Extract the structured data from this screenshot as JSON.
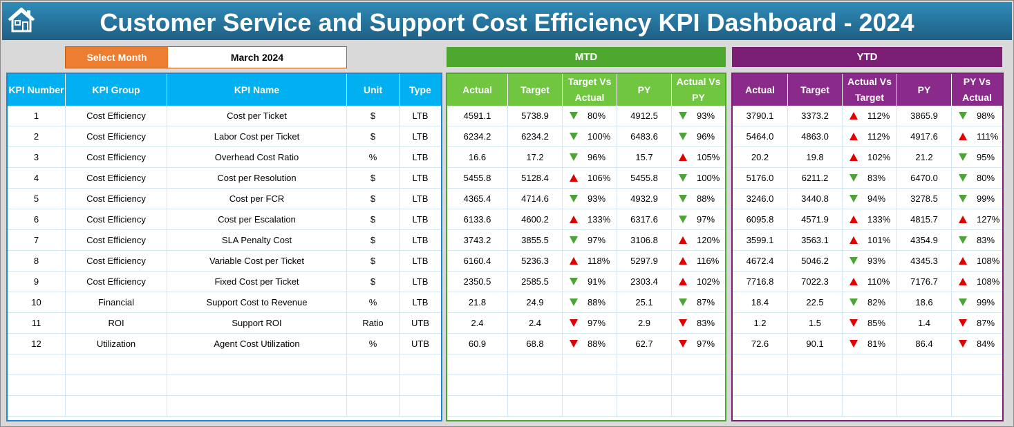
{
  "header": {
    "title": "Customer Service and Support Cost Efficiency KPI Dashboard - 2024"
  },
  "month_selector": {
    "label": "Select Month",
    "value": "March 2024"
  },
  "colors": {
    "kpi_header": "#00b0f0",
    "mtd": "#70c63f",
    "mtd_banner": "#4ea72e",
    "ytd": "#8a2a8a",
    "ytd_banner": "#7a1f74",
    "orange": "#ed7d31"
  },
  "mtd": {
    "banner": "MTD",
    "headers": [
      "Actual",
      "Target",
      "Target Vs Actual",
      "PY",
      "Actual Vs PY"
    ]
  },
  "ytd": {
    "banner": "YTD",
    "headers": [
      "Actual",
      "Target",
      "Actual Vs Target",
      "PY",
      "PY Vs Actual"
    ]
  },
  "kpi_headers": [
    "KPI Number",
    "KPI Group",
    "KPI Name",
    "Unit",
    "Type"
  ],
  "rows": [
    {
      "num": "1",
      "group": "Cost Efficiency",
      "name": "Cost per Ticket",
      "unit": "$",
      "type": "LTB",
      "mtd": {
        "actual": "4591.1",
        "target": "5738.9",
        "tva": "80%",
        "tva_icon": "down-green",
        "py": "4912.5",
        "avp": "93%",
        "avp_icon": "down-green"
      },
      "ytd": {
        "actual": "3790.1",
        "target": "3373.2",
        "avt": "112%",
        "avt_icon": "up-red",
        "py": "3865.9",
        "pva": "98%",
        "pva_icon": "down-green"
      }
    },
    {
      "num": "2",
      "group": "Cost Efficiency",
      "name": "Labor Cost per Ticket",
      "unit": "$",
      "type": "LTB",
      "mtd": {
        "actual": "6234.2",
        "target": "6234.2",
        "tva": "100%",
        "tva_icon": "down-green",
        "py": "6483.6",
        "avp": "96%",
        "avp_icon": "down-green"
      },
      "ytd": {
        "actual": "5464.0",
        "target": "4863.0",
        "avt": "112%",
        "avt_icon": "up-red",
        "py": "4917.6",
        "pva": "111%",
        "pva_icon": "up-red"
      }
    },
    {
      "num": "3",
      "group": "Cost Efficiency",
      "name": "Overhead Cost Ratio",
      "unit": "%",
      "type": "LTB",
      "mtd": {
        "actual": "16.6",
        "target": "17.2",
        "tva": "96%",
        "tva_icon": "down-green",
        "py": "15.7",
        "avp": "105%",
        "avp_icon": "up-red"
      },
      "ytd": {
        "actual": "20.2",
        "target": "19.8",
        "avt": "102%",
        "avt_icon": "up-red",
        "py": "21.2",
        "pva": "95%",
        "pva_icon": "down-green"
      }
    },
    {
      "num": "4",
      "group": "Cost Efficiency",
      "name": "Cost per Resolution",
      "unit": "$",
      "type": "LTB",
      "mtd": {
        "actual": "5455.8",
        "target": "5128.4",
        "tva": "106%",
        "tva_icon": "up-red",
        "py": "5455.8",
        "avp": "100%",
        "avp_icon": "down-green"
      },
      "ytd": {
        "actual": "5176.0",
        "target": "6211.2",
        "avt": "83%",
        "avt_icon": "down-green",
        "py": "6470.0",
        "pva": "80%",
        "pva_icon": "down-green"
      }
    },
    {
      "num": "5",
      "group": "Cost Efficiency",
      "name": "Cost per FCR",
      "unit": "$",
      "type": "LTB",
      "mtd": {
        "actual": "4365.4",
        "target": "4714.6",
        "tva": "93%",
        "tva_icon": "down-green",
        "py": "4932.9",
        "avp": "88%",
        "avp_icon": "down-green"
      },
      "ytd": {
        "actual": "3246.0",
        "target": "3440.8",
        "avt": "94%",
        "avt_icon": "down-green",
        "py": "3278.5",
        "pva": "99%",
        "pva_icon": "down-green"
      }
    },
    {
      "num": "6",
      "group": "Cost Efficiency",
      "name": "Cost per Escalation",
      "unit": "$",
      "type": "LTB",
      "mtd": {
        "actual": "6133.6",
        "target": "4600.2",
        "tva": "133%",
        "tva_icon": "up-red",
        "py": "6317.6",
        "avp": "97%",
        "avp_icon": "down-green"
      },
      "ytd": {
        "actual": "6095.8",
        "target": "4571.9",
        "avt": "133%",
        "avt_icon": "up-red",
        "py": "4815.7",
        "pva": "127%",
        "pva_icon": "up-red"
      }
    },
    {
      "num": "7",
      "group": "Cost Efficiency",
      "name": "SLA Penalty Cost",
      "unit": "$",
      "type": "LTB",
      "mtd": {
        "actual": "3743.2",
        "target": "3855.5",
        "tva": "97%",
        "tva_icon": "down-green",
        "py": "3106.8",
        "avp": "120%",
        "avp_icon": "up-red"
      },
      "ytd": {
        "actual": "3599.1",
        "target": "3563.1",
        "avt": "101%",
        "avt_icon": "up-red",
        "py": "4354.9",
        "pva": "83%",
        "pva_icon": "down-green"
      }
    },
    {
      "num": "8",
      "group": "Cost Efficiency",
      "name": "Variable Cost per Ticket",
      "unit": "$",
      "type": "LTB",
      "mtd": {
        "actual": "6160.4",
        "target": "5236.3",
        "tva": "118%",
        "tva_icon": "up-red",
        "py": "5297.9",
        "avp": "116%",
        "avp_icon": "up-red"
      },
      "ytd": {
        "actual": "4672.4",
        "target": "5046.2",
        "avt": "93%",
        "avt_icon": "down-green",
        "py": "4345.3",
        "pva": "108%",
        "pva_icon": "up-red"
      }
    },
    {
      "num": "9",
      "group": "Cost Efficiency",
      "name": "Fixed Cost per Ticket",
      "unit": "$",
      "type": "LTB",
      "mtd": {
        "actual": "2350.5",
        "target": "2585.5",
        "tva": "91%",
        "tva_icon": "down-green",
        "py": "2303.4",
        "avp": "102%",
        "avp_icon": "up-red"
      },
      "ytd": {
        "actual": "7716.8",
        "target": "7022.3",
        "avt": "110%",
        "avt_icon": "up-red",
        "py": "7176.7",
        "pva": "108%",
        "pva_icon": "up-red"
      }
    },
    {
      "num": "10",
      "group": "Financial",
      "name": "Support Cost to Revenue",
      "unit": "%",
      "type": "LTB",
      "mtd": {
        "actual": "21.8",
        "target": "24.9",
        "tva": "88%",
        "tva_icon": "down-green",
        "py": "25.1",
        "avp": "87%",
        "avp_icon": "down-green"
      },
      "ytd": {
        "actual": "18.4",
        "target": "22.5",
        "avt": "82%",
        "avt_icon": "down-green",
        "py": "18.6",
        "pva": "99%",
        "pva_icon": "down-green"
      }
    },
    {
      "num": "11",
      "group": "ROI",
      "name": "Support ROI",
      "unit": "Ratio",
      "type": "UTB",
      "mtd": {
        "actual": "2.4",
        "target": "2.4",
        "tva": "97%",
        "tva_icon": "down-red",
        "py": "2.9",
        "avp": "83%",
        "avp_icon": "down-red"
      },
      "ytd": {
        "actual": "1.2",
        "target": "1.5",
        "avt": "85%",
        "avt_icon": "down-red",
        "py": "1.4",
        "pva": "87%",
        "pva_icon": "down-red"
      }
    },
    {
      "num": "12",
      "group": "Utilization",
      "name": "Agent Cost Utilization",
      "unit": "%",
      "type": "UTB",
      "mtd": {
        "actual": "60.9",
        "target": "68.8",
        "tva": "88%",
        "tva_icon": "down-red",
        "py": "62.7",
        "avp": "97%",
        "avp_icon": "down-red"
      },
      "ytd": {
        "actual": "72.6",
        "target": "90.1",
        "avt": "81%",
        "avt_icon": "down-red",
        "py": "86.4",
        "pva": "84%",
        "pva_icon": "down-red"
      }
    }
  ]
}
